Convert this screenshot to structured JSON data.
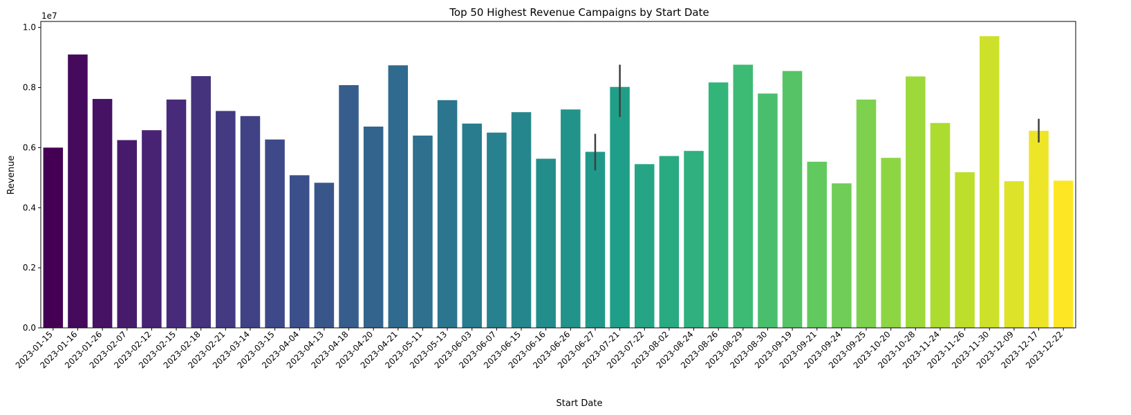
{
  "chart_data": {
    "type": "bar",
    "title": "Top 50 Highest Revenue Campaigns by Start Date",
    "xlabel": "Start Date",
    "ylabel": "Revenue",
    "y_offset_label": "1e7",
    "ylim": [
      0,
      1.02
    ],
    "yticks": [
      0.0,
      0.2,
      0.4,
      0.6,
      0.8,
      1.0
    ],
    "ytick_labels": [
      "0.0",
      "0.2",
      "0.4",
      "0.6",
      "0.8",
      "1.0"
    ],
    "grid": false,
    "legend": "none",
    "palette": "viridis",
    "categories": [
      "2023-01-15",
      "2023-01-16",
      "2023-01-26",
      "2023-02-07",
      "2023-02-12",
      "2023-02-15",
      "2023-02-18",
      "2023-02-21",
      "2023-03-14",
      "2023-03-15",
      "2023-04-04",
      "2023-04-13",
      "2023-04-18",
      "2023-04-20",
      "2023-04-21",
      "2023-05-11",
      "2023-05-13",
      "2023-06-03",
      "2023-06-07",
      "2023-06-15",
      "2023-06-16",
      "2023-06-26",
      "2023-06-27",
      "2023-07-21",
      "2023-07-22",
      "2023-08-02",
      "2023-08-24",
      "2023-08-26",
      "2023-08-29",
      "2023-08-30",
      "2023-09-19",
      "2023-09-21",
      "2023-09-24",
      "2023-09-25",
      "2023-10-20",
      "2023-10-28",
      "2023-11-24",
      "2023-11-26",
      "2023-11-30",
      "2023-12-09",
      "2023-12-17",
      "2023-12-22"
    ],
    "values": [
      0.6,
      0.91,
      0.762,
      0.625,
      0.658,
      0.76,
      0.838,
      0.722,
      0.705,
      0.627,
      0.508,
      0.483,
      0.808,
      0.67,
      0.874,
      0.64,
      0.758,
      0.68,
      0.65,
      0.718,
      0.563,
      0.727,
      0.586,
      0.802,
      0.545,
      0.572,
      0.589,
      0.817,
      0.876,
      0.78,
      0.855,
      0.553,
      0.481,
      0.76,
      0.566,
      0.837,
      0.682,
      0.518,
      0.971,
      0.488,
      0.656,
      0.49
    ],
    "error_bars": [
      {
        "category": "2023-06-27",
        "low": 0.524,
        "high": 0.646
      },
      {
        "category": "2023-07-21",
        "low": 0.702,
        "high": 0.876
      },
      {
        "category": "2023-12-17",
        "low": 0.617,
        "high": 0.696
      }
    ]
  }
}
